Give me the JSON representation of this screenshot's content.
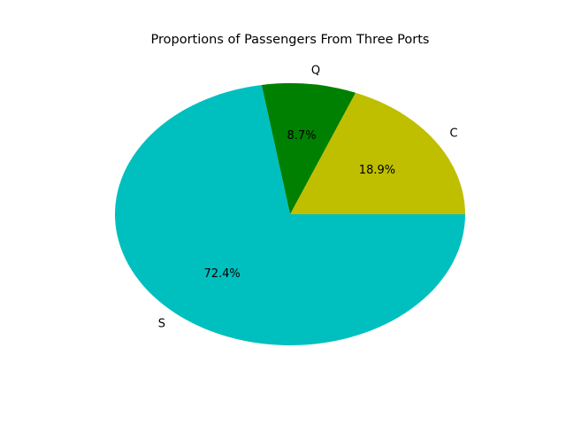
{
  "chart_data": {
    "type": "pie",
    "title": "Proportions of Passengers From Three Ports",
    "slices": [
      {
        "label": "C",
        "value": 18.9,
        "pct_label": "18.9%",
        "color": "#bfbf00"
      },
      {
        "label": "Q",
        "value": 8.7,
        "pct_label": "8.7%",
        "color": "#008000"
      },
      {
        "label": "S",
        "value": 72.4,
        "pct_label": "72.4%",
        "color": "#00bfbf"
      }
    ],
    "start_angle_deg": 0,
    "direction": "counterclockwise",
    "legend": "none"
  }
}
